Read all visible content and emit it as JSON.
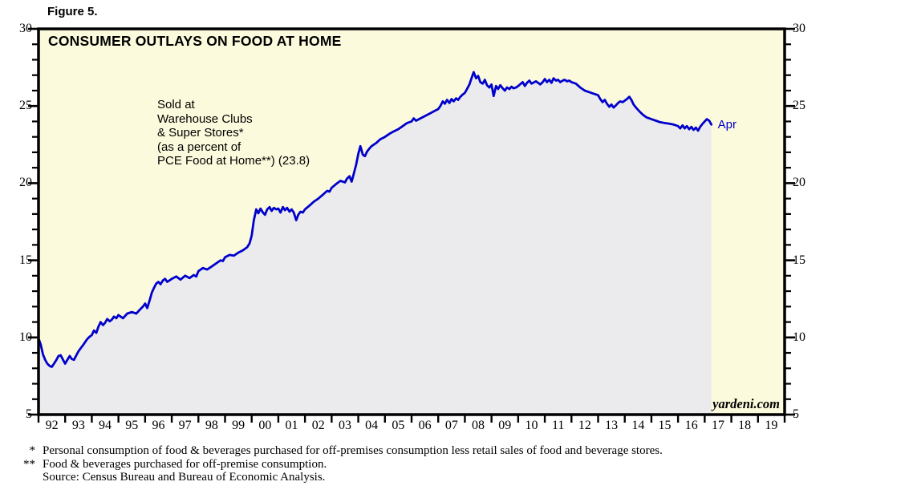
{
  "figure_label": "Figure 5.",
  "chart_title": "CONSUMER OUTLAYS ON FOOD AT HOME",
  "annotation": {
    "lines": [
      "Sold at",
      "Warehouse Clubs",
      "& Super Stores*",
      "(as a percent of",
      "PCE Food at Home**) (23.8)"
    ]
  },
  "end_label": "Apr",
  "watermark": "yardeni.com",
  "footnotes": [
    {
      "marker": "*",
      "text": "Personal consumption of food & beverages purchased for off-premises consumption less retail sales of food and beverage stores."
    },
    {
      "marker": "**",
      "text": "Food & beverages purchased for off-premise consumption."
    },
    {
      "marker": "",
      "text": "Source: Census Bureau and Bureau of Economic Analysis."
    }
  ],
  "colors": {
    "line": "#0000CD",
    "fill_under_line": "#EBEBEE",
    "plot_background": "#FCFADC",
    "axis": "#000000",
    "end_label_blue": "#0000CD",
    "page_background": "#FFFFFF"
  },
  "chart_data": {
    "type": "line",
    "title": "CONSUMER OUTLAYS ON FOOD AT HOME",
    "series_name": "Sold at Warehouse Clubs & Super Stores (as a percent of PCE Food at Home)",
    "latest_value": 23.8,
    "latest_point_label": "Apr",
    "xlim": [
      1992,
      2020
    ],
    "ylim": [
      5,
      30
    ],
    "y_major_ticks": [
      5,
      10,
      15,
      20,
      25,
      30
    ],
    "y_minor_step": 1,
    "x_tick_step_years": 1,
    "x_tick_labels": [
      "92",
      "93",
      "94",
      "95",
      "96",
      "97",
      "98",
      "99",
      "00",
      "01",
      "02",
      "03",
      "04",
      "05",
      "06",
      "07",
      "08",
      "09",
      "10",
      "11",
      "12",
      "13",
      "14",
      "15",
      "16",
      "17",
      "18",
      "19"
    ],
    "axis_sides": "both",
    "fill_under": true,
    "grid": false,
    "legend_position": "none",
    "points": [
      [
        1992.0,
        9.95
      ],
      [
        1992.08,
        9.55
      ],
      [
        1992.17,
        8.9
      ],
      [
        1992.25,
        8.55
      ],
      [
        1992.33,
        8.3
      ],
      [
        1992.42,
        8.15
      ],
      [
        1992.5,
        8.1
      ],
      [
        1992.58,
        8.3
      ],
      [
        1992.67,
        8.55
      ],
      [
        1992.75,
        8.8
      ],
      [
        1992.83,
        8.85
      ],
      [
        1992.92,
        8.55
      ],
      [
        1993.0,
        8.3
      ],
      [
        1993.08,
        8.55
      ],
      [
        1993.17,
        8.8
      ],
      [
        1993.25,
        8.6
      ],
      [
        1993.33,
        8.55
      ],
      [
        1993.42,
        8.85
      ],
      [
        1993.5,
        9.1
      ],
      [
        1993.58,
        9.3
      ],
      [
        1993.67,
        9.5
      ],
      [
        1993.75,
        9.7
      ],
      [
        1993.83,
        9.9
      ],
      [
        1993.92,
        10.05
      ],
      [
        1994.0,
        10.15
      ],
      [
        1994.08,
        10.45
      ],
      [
        1994.17,
        10.3
      ],
      [
        1994.25,
        10.7
      ],
      [
        1994.33,
        11.0
      ],
      [
        1994.42,
        10.8
      ],
      [
        1994.5,
        10.95
      ],
      [
        1994.58,
        11.2
      ],
      [
        1994.67,
        11.05
      ],
      [
        1994.75,
        11.15
      ],
      [
        1994.83,
        11.35
      ],
      [
        1994.92,
        11.25
      ],
      [
        1995.0,
        11.45
      ],
      [
        1995.17,
        11.25
      ],
      [
        1995.33,
        11.55
      ],
      [
        1995.5,
        11.65
      ],
      [
        1995.67,
        11.55
      ],
      [
        1995.83,
        11.85
      ],
      [
        1995.92,
        12.0
      ],
      [
        1996.0,
        12.2
      ],
      [
        1996.08,
        11.9
      ],
      [
        1996.17,
        12.4
      ],
      [
        1996.25,
        12.9
      ],
      [
        1996.33,
        13.2
      ],
      [
        1996.42,
        13.5
      ],
      [
        1996.5,
        13.6
      ],
      [
        1996.58,
        13.45
      ],
      [
        1996.67,
        13.7
      ],
      [
        1996.75,
        13.8
      ],
      [
        1996.83,
        13.6
      ],
      [
        1996.92,
        13.7
      ],
      [
        1997.0,
        13.8
      ],
      [
        1997.17,
        13.95
      ],
      [
        1997.33,
        13.75
      ],
      [
        1997.5,
        14.0
      ],
      [
        1997.67,
        13.85
      ],
      [
        1997.83,
        14.05
      ],
      [
        1997.92,
        13.95
      ],
      [
        1998.0,
        14.3
      ],
      [
        1998.17,
        14.5
      ],
      [
        1998.33,
        14.4
      ],
      [
        1998.5,
        14.6
      ],
      [
        1998.67,
        14.8
      ],
      [
        1998.83,
        15.0
      ],
      [
        1998.92,
        14.95
      ],
      [
        1999.0,
        15.2
      ],
      [
        1999.17,
        15.35
      ],
      [
        1999.33,
        15.3
      ],
      [
        1999.5,
        15.5
      ],
      [
        1999.67,
        15.65
      ],
      [
        1999.83,
        15.85
      ],
      [
        1999.92,
        16.1
      ],
      [
        2000.0,
        16.6
      ],
      [
        2000.08,
        17.6
      ],
      [
        2000.17,
        18.3
      ],
      [
        2000.25,
        18.05
      ],
      [
        2000.33,
        18.35
      ],
      [
        2000.42,
        18.1
      ],
      [
        2000.5,
        17.95
      ],
      [
        2000.58,
        18.3
      ],
      [
        2000.67,
        18.45
      ],
      [
        2000.75,
        18.2
      ],
      [
        2000.83,
        18.4
      ],
      [
        2000.92,
        18.3
      ],
      [
        2001.0,
        18.35
      ],
      [
        2001.08,
        18.1
      ],
      [
        2001.17,
        18.45
      ],
      [
        2001.25,
        18.25
      ],
      [
        2001.33,
        18.4
      ],
      [
        2001.42,
        18.15
      ],
      [
        2001.5,
        18.3
      ],
      [
        2001.58,
        18.1
      ],
      [
        2001.67,
        17.6
      ],
      [
        2001.75,
        17.95
      ],
      [
        2001.83,
        18.15
      ],
      [
        2001.92,
        18.1
      ],
      [
        2002.0,
        18.3
      ],
      [
        2002.17,
        18.55
      ],
      [
        2002.33,
        18.8
      ],
      [
        2002.5,
        19.0
      ],
      [
        2002.67,
        19.25
      ],
      [
        2002.83,
        19.5
      ],
      [
        2002.92,
        19.45
      ],
      [
        2003.0,
        19.7
      ],
      [
        2003.17,
        19.95
      ],
      [
        2003.33,
        20.15
      ],
      [
        2003.5,
        20.05
      ],
      [
        2003.58,
        20.3
      ],
      [
        2003.67,
        20.45
      ],
      [
        2003.75,
        20.1
      ],
      [
        2003.83,
        20.6
      ],
      [
        2003.92,
        21.2
      ],
      [
        2004.0,
        21.9
      ],
      [
        2004.08,
        22.4
      ],
      [
        2004.17,
        21.85
      ],
      [
        2004.25,
        21.75
      ],
      [
        2004.33,
        22.05
      ],
      [
        2004.42,
        22.25
      ],
      [
        2004.5,
        22.4
      ],
      [
        2004.67,
        22.6
      ],
      [
        2004.83,
        22.85
      ],
      [
        2005.0,
        23.0
      ],
      [
        2005.17,
        23.2
      ],
      [
        2005.33,
        23.35
      ],
      [
        2005.5,
        23.5
      ],
      [
        2005.67,
        23.7
      ],
      [
        2005.83,
        23.9
      ],
      [
        2006.0,
        24.0
      ],
      [
        2006.08,
        24.2
      ],
      [
        2006.17,
        24.05
      ],
      [
        2006.33,
        24.2
      ],
      [
        2006.5,
        24.35
      ],
      [
        2006.67,
        24.5
      ],
      [
        2006.83,
        24.65
      ],
      [
        2007.0,
        24.8
      ],
      [
        2007.08,
        25.0
      ],
      [
        2007.17,
        25.3
      ],
      [
        2007.25,
        25.15
      ],
      [
        2007.33,
        25.4
      ],
      [
        2007.42,
        25.2
      ],
      [
        2007.5,
        25.45
      ],
      [
        2007.58,
        25.3
      ],
      [
        2007.67,
        25.5
      ],
      [
        2007.75,
        25.4
      ],
      [
        2007.83,
        25.6
      ],
      [
        2007.92,
        25.75
      ],
      [
        2008.0,
        25.85
      ],
      [
        2008.08,
        26.1
      ],
      [
        2008.17,
        26.4
      ],
      [
        2008.25,
        26.8
      ],
      [
        2008.33,
        27.2
      ],
      [
        2008.42,
        26.8
      ],
      [
        2008.5,
        26.95
      ],
      [
        2008.58,
        26.55
      ],
      [
        2008.67,
        26.45
      ],
      [
        2008.75,
        26.7
      ],
      [
        2008.83,
        26.35
      ],
      [
        2008.92,
        26.2
      ],
      [
        2009.0,
        26.4
      ],
      [
        2009.08,
        25.65
      ],
      [
        2009.17,
        26.3
      ],
      [
        2009.25,
        26.1
      ],
      [
        2009.33,
        26.35
      ],
      [
        2009.42,
        26.15
      ],
      [
        2009.5,
        26.0
      ],
      [
        2009.58,
        26.2
      ],
      [
        2009.67,
        26.1
      ],
      [
        2009.75,
        26.25
      ],
      [
        2009.83,
        26.15
      ],
      [
        2009.92,
        26.2
      ],
      [
        2010.0,
        26.3
      ],
      [
        2010.17,
        26.55
      ],
      [
        2010.25,
        26.3
      ],
      [
        2010.33,
        26.5
      ],
      [
        2010.42,
        26.65
      ],
      [
        2010.5,
        26.45
      ],
      [
        2010.67,
        26.6
      ],
      [
        2010.83,
        26.4
      ],
      [
        2010.92,
        26.55
      ],
      [
        2011.0,
        26.75
      ],
      [
        2011.08,
        26.55
      ],
      [
        2011.17,
        26.7
      ],
      [
        2011.25,
        26.5
      ],
      [
        2011.33,
        26.8
      ],
      [
        2011.42,
        26.65
      ],
      [
        2011.5,
        26.7
      ],
      [
        2011.58,
        26.55
      ],
      [
        2011.67,
        26.65
      ],
      [
        2011.75,
        26.7
      ],
      [
        2011.83,
        26.6
      ],
      [
        2011.92,
        26.65
      ],
      [
        2012.0,
        26.55
      ],
      [
        2012.17,
        26.45
      ],
      [
        2012.33,
        26.2
      ],
      [
        2012.5,
        26.0
      ],
      [
        2012.67,
        25.9
      ],
      [
        2012.83,
        25.8
      ],
      [
        2013.0,
        25.7
      ],
      [
        2013.08,
        25.45
      ],
      [
        2013.17,
        25.25
      ],
      [
        2013.25,
        25.4
      ],
      [
        2013.33,
        25.15
      ],
      [
        2013.42,
        24.95
      ],
      [
        2013.5,
        25.1
      ],
      [
        2013.58,
        24.9
      ],
      [
        2013.67,
        25.05
      ],
      [
        2013.75,
        25.2
      ],
      [
        2013.83,
        25.3
      ],
      [
        2013.92,
        25.25
      ],
      [
        2014.0,
        25.35
      ],
      [
        2014.08,
        25.45
      ],
      [
        2014.17,
        25.6
      ],
      [
        2014.25,
        25.4
      ],
      [
        2014.33,
        25.1
      ],
      [
        2014.42,
        24.9
      ],
      [
        2014.5,
        24.75
      ],
      [
        2014.58,
        24.6
      ],
      [
        2014.67,
        24.45
      ],
      [
        2014.75,
        24.35
      ],
      [
        2014.83,
        24.25
      ],
      [
        2014.92,
        24.2
      ],
      [
        2015.0,
        24.15
      ],
      [
        2015.17,
        24.05
      ],
      [
        2015.33,
        23.95
      ],
      [
        2015.5,
        23.9
      ],
      [
        2015.67,
        23.85
      ],
      [
        2015.83,
        23.8
      ],
      [
        2016.0,
        23.7
      ],
      [
        2016.08,
        23.55
      ],
      [
        2016.17,
        23.75
      ],
      [
        2016.25,
        23.55
      ],
      [
        2016.33,
        23.7
      ],
      [
        2016.42,
        23.5
      ],
      [
        2016.5,
        23.65
      ],
      [
        2016.58,
        23.45
      ],
      [
        2016.67,
        23.6
      ],
      [
        2016.75,
        23.4
      ],
      [
        2016.83,
        23.65
      ],
      [
        2016.92,
        23.85
      ],
      [
        2017.0,
        24.0
      ],
      [
        2017.08,
        24.15
      ],
      [
        2017.17,
        24.05
      ],
      [
        2017.25,
        23.8
      ]
    ]
  }
}
